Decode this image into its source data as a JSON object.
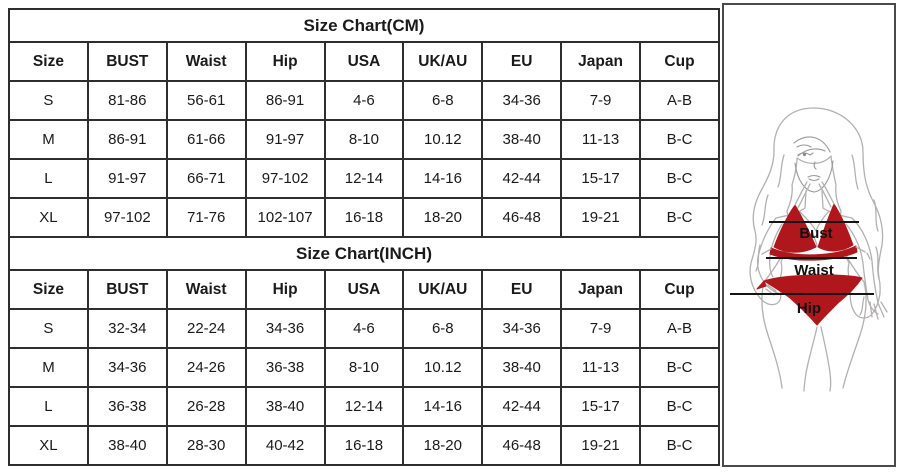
{
  "colors": {
    "table_border": "#2e2e2e",
    "text": "#1a1a1a",
    "figure_border": "#4a4a4a",
    "bikini_red": "#b0171d",
    "line_art": "#b3b0b0",
    "measure_line": "#151515"
  },
  "cm_table": {
    "title": "Size Chart(CM)",
    "headers": [
      "Size",
      "BUST",
      "Waist",
      "Hip",
      "USA",
      "UK/AU",
      "EU",
      "Japan",
      "Cup"
    ],
    "rows": [
      [
        "S",
        "81-86",
        "56-61",
        "86-91",
        "4-6",
        "6-8",
        "34-36",
        "7-9",
        "A-B"
      ],
      [
        "M",
        "86-91",
        "61-66",
        "91-97",
        "8-10",
        "10.12",
        "38-40",
        "11-13",
        "B-C"
      ],
      [
        "L",
        "91-97",
        "66-71",
        "97-102",
        "12-14",
        "14-16",
        "42-44",
        "15-17",
        "B-C"
      ],
      [
        "XL",
        "97-102",
        "71-76",
        "102-107",
        "16-18",
        "18-20",
        "46-48",
        "19-21",
        "B-C"
      ]
    ]
  },
  "inch_table": {
    "title": "Size Chart(INCH)",
    "headers": [
      "Size",
      "BUST",
      "Waist",
      "Hip",
      "USA",
      "UK/AU",
      "EU",
      "Japan",
      "Cup"
    ],
    "rows": [
      [
        "S",
        "32-34",
        "22-24",
        "34-36",
        "4-6",
        "6-8",
        "34-36",
        "7-9",
        "A-B"
      ],
      [
        "M",
        "34-36",
        "24-26",
        "36-38",
        "8-10",
        "10.12",
        "38-40",
        "11-13",
        "B-C"
      ],
      [
        "L",
        "36-38",
        "26-28",
        "38-40",
        "12-14",
        "14-16",
        "42-44",
        "15-17",
        "B-C"
      ],
      [
        "XL",
        "38-40",
        "28-30",
        "40-42",
        "16-18",
        "18-20",
        "46-48",
        "19-21",
        "B-C"
      ]
    ]
  },
  "figure": {
    "labels": {
      "bust": "Bust",
      "waist": "Waist",
      "hip": "Hip"
    }
  }
}
